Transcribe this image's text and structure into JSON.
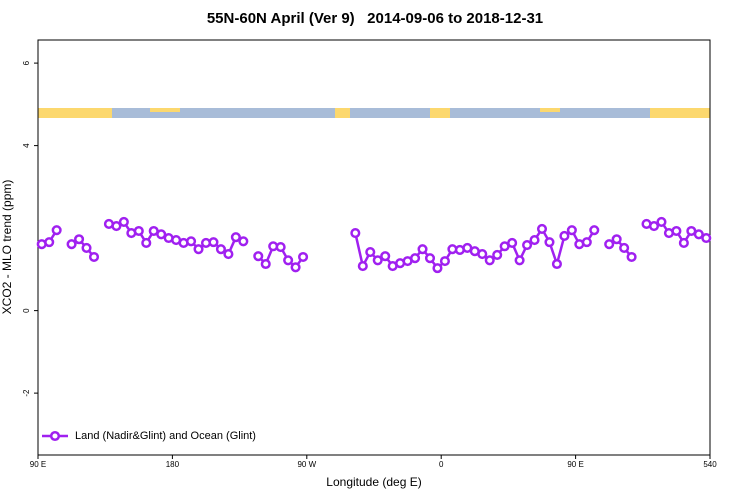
{
  "chart_data": {
    "type": "line",
    "title": "55N-60N April (Ver 9)   2014-09-06 to 2018-12-31",
    "x_label": "Longitude (deg E)",
    "y_label": "XCO2 - MLO trend (ppm)",
    "xlim": [
      90,
      540
    ],
    "ylim": [
      -3.5,
      6.56
    ],
    "xticks": [
      {
        "value": 90,
        "label": "90 E"
      },
      180,
      {
        "value": 270,
        "label": "90 W"
      },
      {
        "value": 360,
        "label": "0"
      },
      {
        "value": 450,
        "label": "90 E"
      },
      540
    ],
    "yticks": [
      -2,
      0,
      4,
      6
    ],
    "legend": "bottom-left",
    "x": [
      92.5,
      97.5,
      102.5,
      107.5,
      112.5,
      117.5,
      122.5,
      127.5,
      132.5,
      137.5,
      142.5,
      147.5,
      152.5,
      157.5,
      162.5,
      167.5,
      172.5,
      177.5,
      182.5,
      187.5,
      192.5,
      197.5,
      202.5,
      207.5,
      212.5,
      217.5,
      222.5,
      227.5,
      232.5,
      237.5,
      242.5,
      247.5,
      252.5,
      257.5,
      262.5,
      267.5,
      272.5,
      302.5,
      307.5,
      312.5,
      317.5,
      322.5,
      327.5,
      332.5,
      337.5,
      342.5,
      347.5,
      352.5,
      357.5,
      362.5,
      367.5,
      372.5,
      377.5,
      382.5,
      387.5,
      392.5,
      397.5,
      402.5,
      407.5,
      412.5,
      417.5,
      422.5,
      427.5,
      432.5,
      437.5,
      442.5,
      447.5,
      452.5,
      457.5,
      462.5,
      467.5,
      472.5,
      477.5,
      482.5,
      487.5,
      492.5,
      497.5,
      502.5,
      507.5,
      512.5,
      517.5,
      522.5,
      527.5,
      532.5,
      537.5
    ],
    "series": [
      {
        "name": "Land (Nadir&Glint) and Ocean (Glint)",
        "color": "#a020f0",
        "values": [
          1.61,
          1.66,
          1.95,
          null,
          1.61,
          1.73,
          1.52,
          1.3,
          null,
          2.1,
          2.05,
          2.15,
          1.88,
          1.93,
          1.64,
          1.93,
          1.85,
          1.76,
          1.71,
          1.64,
          1.68,
          1.49,
          1.64,
          1.66,
          1.49,
          1.37,
          1.78,
          1.68,
          null,
          1.32,
          1.13,
          1.56,
          1.54,
          1.22,
          1.05,
          1.3,
          null,
          1.88,
          1.08,
          1.42,
          1.22,
          1.32,
          1.08,
          1.15,
          1.2,
          1.27,
          1.49,
          1.27,
          1.03,
          1.2,
          1.49,
          1.47,
          1.52,
          1.44,
          1.37,
          1.22,
          1.35,
          1.56,
          1.64,
          1.22,
          1.59,
          1.71,
          1.98,
          1.66,
          1.13,
          1.81,
          1.95,
          1.61,
          1.66,
          1.95,
          null,
          1.61,
          1.73,
          1.52,
          1.3,
          null,
          2.1,
          2.05,
          2.15,
          1.88,
          1.93,
          1.64,
          1.93,
          1.85,
          1.76
        ]
      }
    ]
  }
}
